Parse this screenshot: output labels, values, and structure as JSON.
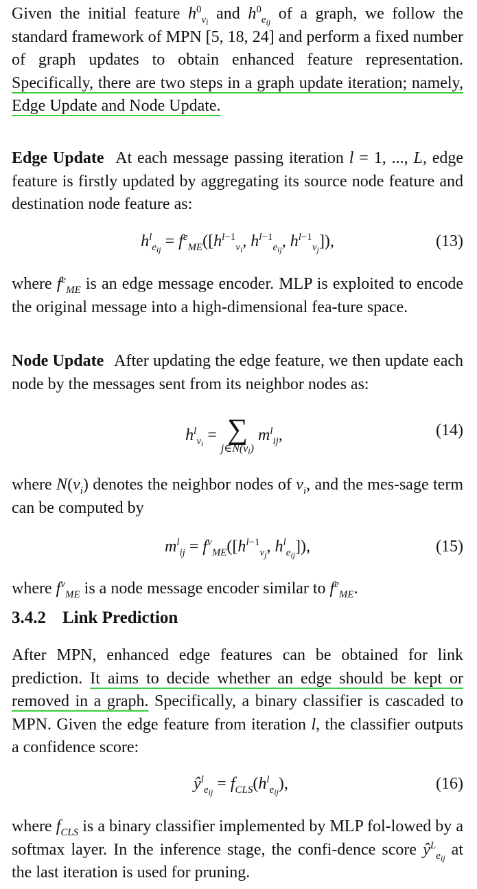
{
  "p1": {
    "t1": "Given the initial feature ",
    "t2": " and ",
    "t3": " of a graph, we follow the standard framework of MPN [5, 18, 24] and perform a fixed number of graph updates to obtain enhanced feature representation. ",
    "highlight": "Specifically, there are two steps in a graph update iteration; namely, Edge Update and Node Update."
  },
  "edge_update": {
    "heading": "Edge Update",
    "t1": "At each message passing iteration ",
    "t2": " = 1, ..., ",
    "t3": ", edge feature is firstly updated by aggregating its source node feature and destination node feature as:"
  },
  "eq13": {
    "number": "(13)"
  },
  "p_after13": {
    "t1": "where ",
    "t2": " is an edge message encoder. MLP is exploited to encode the original message into a high-dimensional fea-ture space."
  },
  "node_update": {
    "heading": "Node Update",
    "text": "After updating the edge feature, we then update each node by the messages sent from its neighbor nodes as:"
  },
  "eq14": {
    "number": "(14)"
  },
  "p_after14": {
    "t1": "where ",
    "t2": " denotes the neighbor nodes of ",
    "t3": ", and the mes-sage term can be computed by"
  },
  "eq15": {
    "number": "(15)"
  },
  "p_after15": {
    "t1": "where ",
    "t2": " is a node message encoder similar to ",
    "t3": "."
  },
  "section": {
    "number": "3.4.2",
    "title": "Link Prediction"
  },
  "p_link": {
    "t1": "After MPN, enhanced edge features can be obtained for link prediction. ",
    "highlight": "It aims to decide whether an edge should be kept or removed in a graph.",
    "t2": " Specifically, a binary classifier is cascaded to MPN. Given the edge feature from iteration ",
    "t3": ", the classifier outputs a confidence score:"
  },
  "eq16": {
    "number": "(16)"
  },
  "p_final": {
    "t1": "where ",
    "t2": " is a binary classifier implemented by MLP fol-lowed by a softmax layer. In the inference stage, the confi-dence score ",
    "t3": " at the last iteration is used for pruning."
  }
}
